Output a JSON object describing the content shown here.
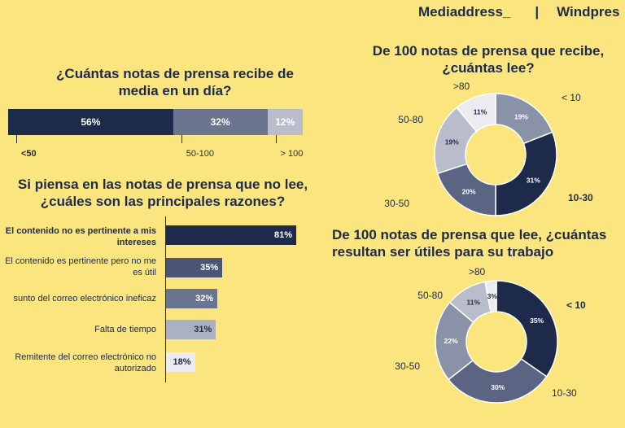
{
  "header": {
    "brand1": "Mediaddress_",
    "separator": "|",
    "brand2": "Windpres"
  },
  "chart_data": [
    {
      "type": "bar",
      "orientation": "horizontal-stacked",
      "title": "¿Cuántas notas de prensa recibe de media en un día?",
      "categories": [
        "<50",
        "50-100",
        "> 100"
      ],
      "values": [
        56,
        32,
        12
      ],
      "value_labels": [
        "56%",
        "32%",
        "12%"
      ],
      "colors": [
        "#1e2a4a",
        "#6c7590",
        "#b8bccb"
      ]
    },
    {
      "type": "bar",
      "orientation": "horizontal",
      "title": "Si piensa en las notas de prensa que no lee, ¿cuáles son las principales razones?",
      "categories": [
        "El contenido no es pertinente a mis intereses",
        "El contenido es pertinente pero no me es útil",
        "sunto del correo electrónico ineficaz",
        "Falta de tiempo",
        "Remitente del correo electrónico no autorizado"
      ],
      "values": [
        81,
        35,
        32,
        31,
        18
      ],
      "value_labels": [
        "81%",
        "35%",
        "32%",
        "31%",
        "18%"
      ],
      "colors": [
        "#1e2a4a",
        "#4b5677",
        "#6c7590",
        "#acb1c1",
        "#ececf0"
      ]
    },
    {
      "type": "pie",
      "style": "donut",
      "title": "De 100 notas de prensa que recibe, ¿cuántas lee?",
      "categories": [
        "< 10",
        "10-30",
        "30-50",
        "50-80",
        ">80"
      ],
      "values": [
        19,
        31,
        20,
        19,
        11
      ],
      "value_labels": [
        "19%",
        "31%",
        "20%",
        "19%",
        "11%"
      ],
      "colors": [
        "#8a92a8",
        "#1e2a4a",
        "#5b6482",
        "#b9bdcb",
        "#ececf0"
      ]
    },
    {
      "type": "pie",
      "style": "donut",
      "title": "De 100 notas de prensa que lee, ¿cuántas resultan ser útiles para su trabajo",
      "categories": [
        "< 10",
        "10-30",
        "30-50",
        "50-80",
        ">80"
      ],
      "values": [
        35,
        30,
        22,
        11,
        3
      ],
      "value_labels": [
        "35%",
        "30%",
        "22%",
        "11%",
        "3%"
      ],
      "colors": [
        "#1e2a4a",
        "#5b6482",
        "#8a92a8",
        "#b9bdcb",
        "#ececf0"
      ]
    }
  ]
}
